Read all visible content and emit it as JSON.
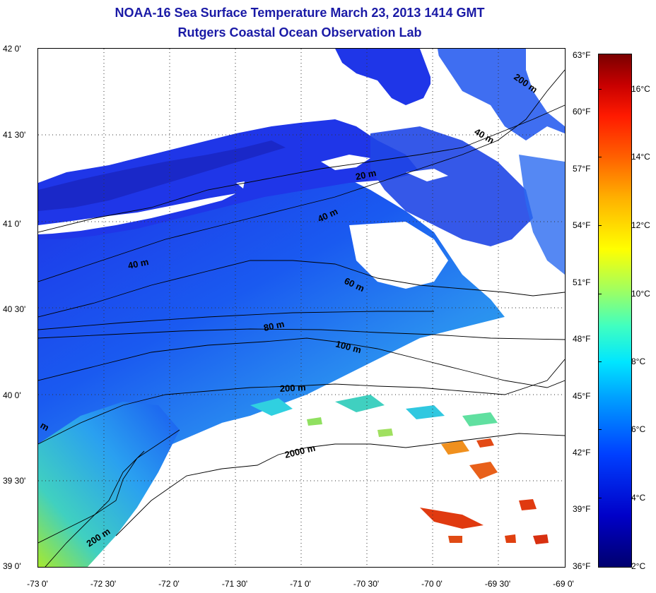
{
  "title_line1": "NOAA-16 Sea Surface Temperature March 23, 2013 1414 GMT",
  "title_line2": "Rutgers Coastal Ocean Observation Lab",
  "lat_labels": [
    "42 0'",
    "41 30'",
    "41 0'",
    "40 30'",
    "40 0'",
    "39 30'",
    "39 0'"
  ],
  "lon_labels": [
    "-73 0'",
    "-72 30'",
    "-72 0'",
    "-71 30'",
    "-71 0'",
    "-70 30'",
    "-70 0'",
    "-69 30'",
    "-69 0'"
  ],
  "fahrenheit_labels": [
    "63°F",
    "60°F",
    "57°F",
    "54°F",
    "51°F",
    "48°F",
    "45°F",
    "42°F",
    "39°F",
    "36°F"
  ],
  "celsius_labels": [
    "16°C",
    "14°C",
    "12°C",
    "10°C",
    "8°C",
    "6°C",
    "4°C",
    "2°C"
  ],
  "isobath_labels": [
    "200 m",
    "40 m",
    "20 m",
    "40 m",
    "40 m",
    "60 m",
    "80 m",
    "100 m",
    "200 m",
    "2000 m",
    "200 m",
    "m"
  ],
  "colors": {
    "title": "#1a1aa6",
    "land": "#ffffff",
    "cold_water": "#1f3fe0",
    "warm_spot": "#e03a10"
  }
}
